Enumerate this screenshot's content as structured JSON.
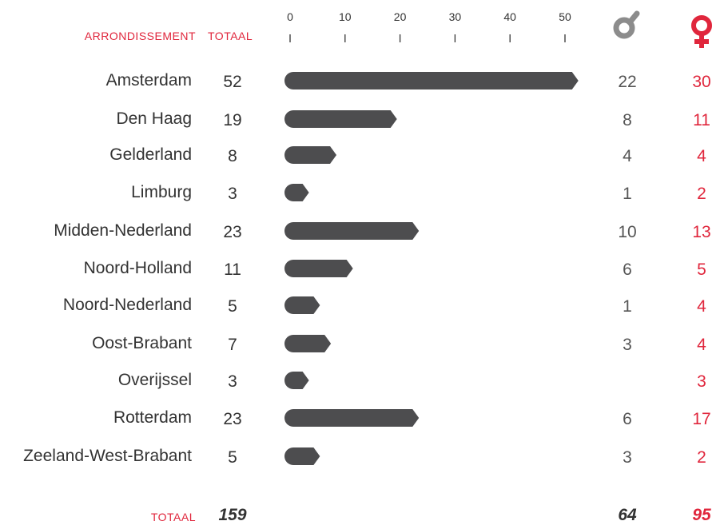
{
  "chart_data": {
    "type": "bar",
    "category_header": "ARRONDISSEMENT",
    "total_header": "TOTAAL",
    "categories": [
      "Amsterdam",
      "Den Haag",
      "Gelderland",
      "Limburg",
      "Midden-Nederland",
      "Noord-Holland",
      "Noord-Nederland",
      "Oost-Brabant",
      "Overijssel",
      "Rotterdam",
      "Zeeland-West-Brabant"
    ],
    "values": [
      52,
      19,
      8,
      3,
      23,
      11,
      5,
      7,
      3,
      23,
      5
    ],
    "color": "#4d4d4f",
    "xlim": [
      0,
      50
    ],
    "xticks": [
      0,
      10,
      20,
      30,
      40,
      50
    ],
    "male": {
      "color": "#555555",
      "symbol_color": "#8c8c8c",
      "values": [
        22,
        8,
        4,
        1,
        10,
        6,
        1,
        3,
        null,
        6,
        3
      ]
    },
    "female": {
      "color": "#e0263c",
      "symbol_color": "#e0263c",
      "values": [
        30,
        11,
        4,
        2,
        13,
        5,
        4,
        4,
        3,
        17,
        2
      ]
    },
    "total_row": {
      "label": "TOTAAL",
      "total": 159,
      "male": 64,
      "female": 95
    }
  }
}
